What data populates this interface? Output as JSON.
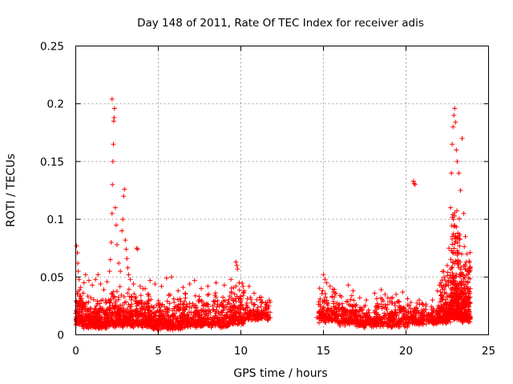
{
  "chart_data": {
    "type": "scatter",
    "title": "Day 148 of 2011, Rate Of TEC Index for receiver adis",
    "xlabel": "GPS time / hours",
    "ylabel": "ROTI / TECUs",
    "xlim": [
      0,
      25
    ],
    "ylim": [
      0,
      0.25
    ],
    "x_ticks": [
      "0",
      "5",
      "10",
      "15",
      "20",
      "25"
    ],
    "y_ticks": [
      "0",
      "0.05",
      "0.1",
      "0.15",
      "0.2",
      "0.25"
    ],
    "grid": true,
    "marker": "plus",
    "point_color": "#ff0000",
    "gap_hours": [
      11.8,
      14.5
    ],
    "series": [
      {
        "points": [
          [
            0.05,
            0.077
          ],
          [
            0.1,
            0.071
          ],
          [
            0.12,
            0.062
          ],
          [
            0.15,
            0.055
          ],
          [
            0.2,
            0.048
          ],
          [
            0.3,
            0.041
          ],
          [
            0.45,
            0.036
          ],
          [
            0.5,
            0.045
          ],
          [
            0.6,
            0.052
          ],
          [
            0.8,
            0.047
          ],
          [
            1.0,
            0.043
          ],
          [
            1.2,
            0.048
          ],
          [
            1.35,
            0.052
          ],
          [
            1.5,
            0.044
          ],
          [
            1.7,
            0.039
          ],
          [
            1.9,
            0.046
          ],
          [
            2.05,
            0.055
          ],
          [
            2.1,
            0.065
          ],
          [
            2.15,
            0.08
          ],
          [
            2.2,
            0.105
          ],
          [
            2.22,
            0.13
          ],
          [
            2.25,
            0.15
          ],
          [
            2.28,
            0.165
          ],
          [
            2.3,
            0.185
          ],
          [
            2.32,
            0.188
          ],
          [
            2.35,
            0.196
          ],
          [
            2.2,
            0.204
          ],
          [
            2.4,
            0.11
          ],
          [
            2.45,
            0.095
          ],
          [
            2.5,
            0.078
          ],
          [
            2.6,
            0.062
          ],
          [
            2.7,
            0.055
          ],
          [
            2.8,
            0.09
          ],
          [
            2.85,
            0.1
          ],
          [
            2.9,
            0.12
          ],
          [
            2.95,
            0.126
          ],
          [
            3.0,
            0.082
          ],
          [
            3.05,
            0.074
          ],
          [
            3.1,
            0.066
          ],
          [
            3.15,
            0.058
          ],
          [
            3.2,
            0.052
          ],
          [
            3.3,
            0.048
          ],
          [
            3.5,
            0.044
          ],
          [
            3.7,
            0.075
          ],
          [
            3.75,
            0.074
          ],
          [
            3.9,
            0.042
          ],
          [
            4.2,
            0.04
          ],
          [
            4.5,
            0.047
          ],
          [
            4.8,
            0.044
          ],
          [
            5.2,
            0.042
          ],
          [
            5.5,
            0.049
          ],
          [
            5.8,
            0.05
          ],
          [
            6.2,
            0.038
          ],
          [
            6.5,
            0.041
          ],
          [
            6.9,
            0.044
          ],
          [
            7.2,
            0.047
          ],
          [
            7.6,
            0.04
          ],
          [
            8.0,
            0.042
          ],
          [
            8.5,
            0.045
          ],
          [
            9.0,
            0.043
          ],
          [
            9.4,
            0.048
          ],
          [
            9.7,
            0.063
          ],
          [
            9.75,
            0.06
          ],
          [
            9.8,
            0.057
          ],
          [
            9.9,
            0.045
          ],
          [
            10.2,
            0.038
          ],
          [
            10.5,
            0.042
          ],
          [
            10.8,
            0.036
          ],
          [
            11.2,
            0.03
          ],
          [
            11.6,
            0.028
          ],
          [
            14.6,
            0.015
          ],
          [
            14.8,
            0.031
          ],
          [
            15.0,
            0.052
          ],
          [
            15.1,
            0.048
          ],
          [
            15.2,
            0.045
          ],
          [
            15.4,
            0.042
          ],
          [
            15.6,
            0.037
          ],
          [
            16.0,
            0.034
          ],
          [
            16.5,
            0.043
          ],
          [
            16.8,
            0.038
          ],
          [
            17.2,
            0.032
          ],
          [
            17.6,
            0.03
          ],
          [
            18.1,
            0.036
          ],
          [
            18.5,
            0.039
          ],
          [
            18.9,
            0.032
          ],
          [
            19.4,
            0.035
          ],
          [
            19.8,
            0.037
          ],
          [
            20.3,
            0.028
          ],
          [
            20.45,
            0.133
          ],
          [
            20.5,
            0.131
          ],
          [
            20.55,
            0.13
          ],
          [
            20.8,
            0.03
          ],
          [
            21.2,
            0.025
          ],
          [
            21.6,
            0.03
          ],
          [
            21.9,
            0.038
          ],
          [
            22.1,
            0.045
          ],
          [
            22.3,
            0.05
          ],
          [
            22.5,
            0.06
          ],
          [
            22.6,
            0.075
          ],
          [
            22.7,
            0.11
          ],
          [
            22.75,
            0.14
          ],
          [
            22.8,
            0.165
          ],
          [
            22.85,
            0.18
          ],
          [
            22.9,
            0.19
          ],
          [
            22.95,
            0.196
          ],
          [
            23.0,
            0.184
          ],
          [
            23.05,
            0.16
          ],
          [
            23.1,
            0.15
          ],
          [
            23.2,
            0.14
          ],
          [
            23.3,
            0.125
          ],
          [
            23.4,
            0.17
          ],
          [
            23.5,
            0.105
          ],
          [
            23.6,
            0.085
          ],
          [
            23.7,
            0.07
          ],
          [
            23.8,
            0.055
          ],
          [
            23.9,
            0.04
          ]
        ],
        "bands": [
          {
            "x": [
              0.0,
              0.4
            ],
            "y": [
              0.008,
              0.04
            ],
            "n": 90
          },
          {
            "x": [
              0.4,
              2.0
            ],
            "y": [
              0.005,
              0.033
            ],
            "n": 280
          },
          {
            "x": [
              2.0,
              4.5
            ],
            "y": [
              0.006,
              0.04
            ],
            "n": 420
          },
          {
            "x": [
              4.5,
              6.5
            ],
            "y": [
              0.004,
              0.034
            ],
            "n": 300
          },
          {
            "x": [
              6.5,
              9.3
            ],
            "y": [
              0.006,
              0.036
            ],
            "n": 360
          },
          {
            "x": [
              9.3,
              10.2
            ],
            "y": [
              0.008,
              0.047
            ],
            "n": 140
          },
          {
            "x": [
              10.2,
              11.8
            ],
            "y": [
              0.012,
              0.033
            ],
            "n": 140
          },
          {
            "x": [
              14.7,
              15.9
            ],
            "y": [
              0.01,
              0.04
            ],
            "n": 160
          },
          {
            "x": [
              15.9,
              17.0
            ],
            "y": [
              0.007,
              0.034
            ],
            "n": 140
          },
          {
            "x": [
              17.0,
              18.2
            ],
            "y": [
              0.006,
              0.024
            ],
            "n": 130
          },
          {
            "x": [
              18.2,
              20.2
            ],
            "y": [
              0.006,
              0.034
            ],
            "n": 240
          },
          {
            "x": [
              20.2,
              22.0
            ],
            "y": [
              0.008,
              0.03
            ],
            "n": 200
          },
          {
            "x": [
              22.0,
              22.7
            ],
            "y": [
              0.01,
              0.06
            ],
            "n": 150
          },
          {
            "x": [
              22.7,
              23.3
            ],
            "y": [
              0.012,
              0.12
            ],
            "n": 260
          },
          {
            "x": [
              23.3,
              23.9
            ],
            "y": [
              0.01,
              0.08
            ],
            "n": 200
          }
        ]
      }
    ]
  }
}
